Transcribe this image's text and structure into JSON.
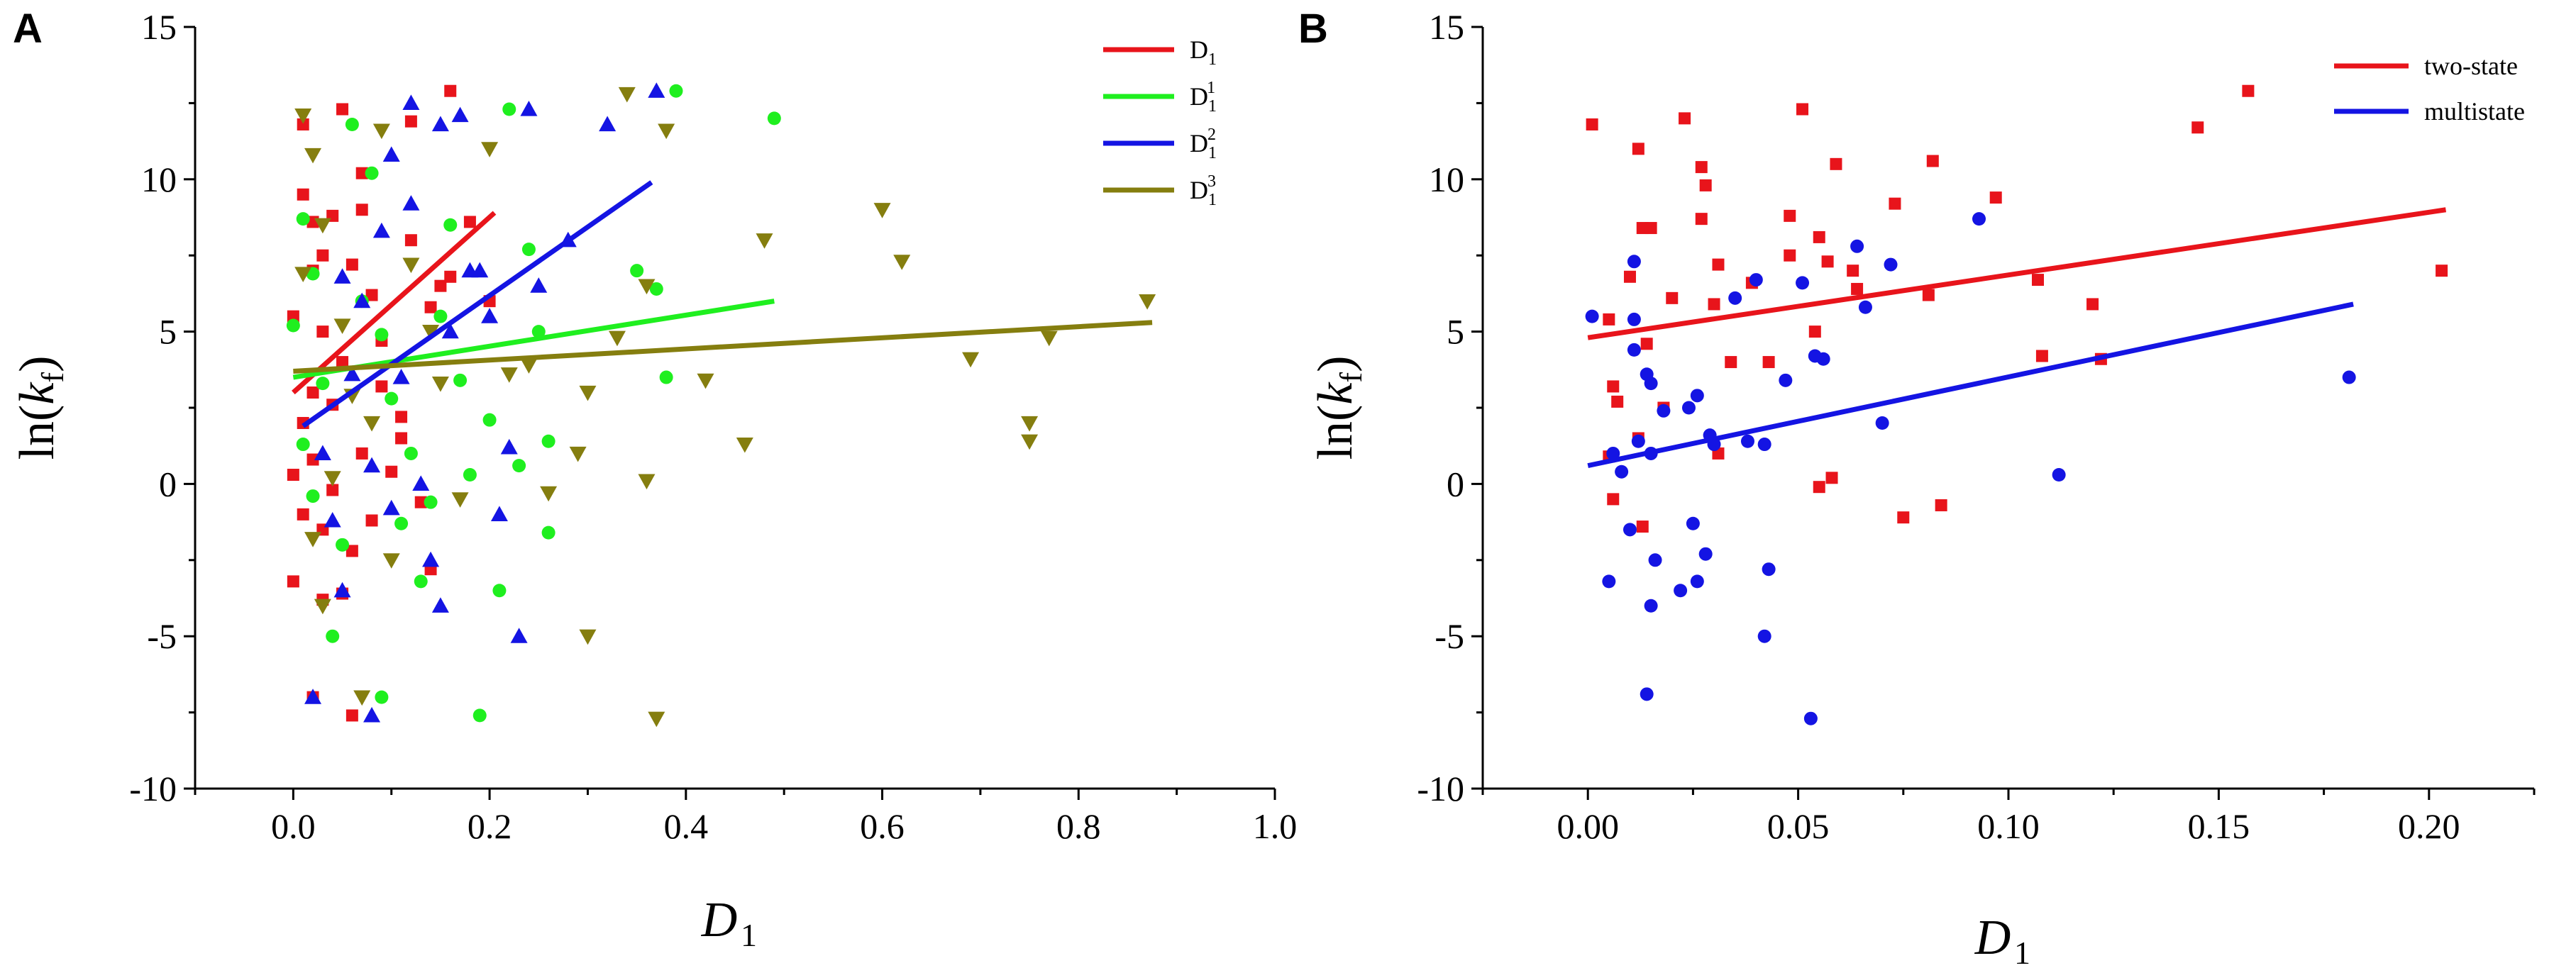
{
  "chart_data": [
    {
      "panel": "A",
      "type": "scatter",
      "xlabel": "D",
      "xlabel_sub": "1",
      "ylabel_prefix": "ln(",
      "ylabel_k": "k",
      "ylabel_sub": "f",
      "ylabel_suffix": ")",
      "xlim": [
        -0.1,
        1.0
      ],
      "ylim": [
        -10,
        15
      ],
      "xticks": [
        "0.0",
        "0.2",
        "0.4",
        "0.6",
        "0.8",
        "1.0"
      ],
      "yticks": [
        "-10",
        "-5",
        "0",
        "5",
        "10",
        "15"
      ],
      "legend_position": "top-right",
      "series": [
        {
          "name": "D",
          "sub": "1",
          "sup": "",
          "color": "#e8141b",
          "marker": "square",
          "fit": [
            [
              0.0,
              3.0
            ],
            [
              0.205,
              8.9
            ]
          ],
          "points": [
            [
              0.0,
              5.5
            ],
            [
              0.01,
              11.8
            ],
            [
              0.01,
              9.5
            ],
            [
              0.02,
              7.0
            ],
            [
              0.02,
              3.0
            ],
            [
              0.0,
              -3.2
            ],
            [
              0.03,
              -1.5
            ],
            [
              0.02,
              -7.0
            ],
            [
              0.06,
              -7.6
            ],
            [
              0.05,
              12.3
            ],
            [
              0.07,
              10.2
            ],
            [
              0.04,
              8.8
            ],
            [
              0.06,
              7.2
            ],
            [
              0.08,
              6.2
            ],
            [
              0.03,
              5.0
            ],
            [
              0.05,
              4.0
            ],
            [
              0.09,
              3.2
            ],
            [
              0.11,
              2.2
            ],
            [
              0.07,
              1.0
            ],
            [
              0.1,
              0.4
            ],
            [
              0.13,
              -0.6
            ],
            [
              0.15,
              6.5
            ],
            [
              0.16,
              12.9
            ],
            [
              0.12,
              11.9
            ],
            [
              0.18,
              8.6
            ],
            [
              0.2,
              6.0
            ],
            [
              0.02,
              0.8
            ],
            [
              0.04,
              -0.2
            ],
            [
              0.06,
              -2.2
            ],
            [
              0.03,
              -3.8
            ],
            [
              0.01,
              2.0
            ],
            [
              0.08,
              -1.2
            ],
            [
              0.05,
              -3.6
            ],
            [
              0.09,
              4.7
            ],
            [
              0.14,
              5.8
            ],
            [
              0.12,
              8.0
            ],
            [
              0.02,
              8.6
            ],
            [
              0.07,
              9.0
            ],
            [
              0.0,
              0.3
            ],
            [
              0.04,
              2.6
            ],
            [
              0.11,
              1.5
            ],
            [
              0.14,
              -2.8
            ],
            [
              0.01,
              -1.0
            ],
            [
              0.03,
              7.5
            ],
            [
              0.16,
              6.8
            ]
          ]
        },
        {
          "name": "D",
          "sub": "1",
          "sup": "1",
          "color": "#1fef1f",
          "marker": "circle",
          "fit": [
            [
              0.0,
              3.5
            ],
            [
              0.49,
              6.0
            ]
          ],
          "points": [
            [
              0.01,
              8.7
            ],
            [
              0.02,
              6.9
            ],
            [
              0.0,
              5.2
            ],
            [
              0.03,
              3.3
            ],
            [
              0.01,
              1.3
            ],
            [
              0.02,
              -0.4
            ],
            [
              0.04,
              -5.0
            ],
            [
              0.06,
              11.8
            ],
            [
              0.08,
              10.2
            ],
            [
              0.09,
              4.9
            ],
            [
              0.1,
              2.8
            ],
            [
              0.12,
              1.0
            ],
            [
              0.11,
              -1.3
            ],
            [
              0.13,
              -3.2
            ],
            [
              0.09,
              -7.0
            ],
            [
              0.19,
              -7.6
            ],
            [
              0.22,
              12.3
            ],
            [
              0.24,
              7.7
            ],
            [
              0.26,
              1.4
            ],
            [
              0.26,
              -1.6
            ],
            [
              0.21,
              -3.5
            ],
            [
              0.35,
              7.0
            ],
            [
              0.37,
              6.4
            ],
            [
              0.38,
              3.5
            ],
            [
              0.39,
              12.9
            ],
            [
              0.49,
              12.0
            ],
            [
              0.15,
              5.5
            ],
            [
              0.17,
              3.4
            ],
            [
              0.2,
              2.1
            ],
            [
              0.23,
              0.6
            ],
            [
              0.07,
              6.0
            ],
            [
              0.14,
              -0.6
            ],
            [
              0.16,
              8.5
            ],
            [
              0.25,
              5.0
            ],
            [
              0.05,
              -2.0
            ],
            [
              0.18,
              0.3
            ]
          ]
        },
        {
          "name": "D",
          "sub": "1",
          "sup": "2",
          "color": "#1414e3",
          "marker": "triangle-up",
          "fit": [
            [
              0.01,
              1.9
            ],
            [
              0.365,
              9.9
            ]
          ],
          "points": [
            [
              0.02,
              -7.0
            ],
            [
              0.08,
              -7.6
            ],
            [
              0.05,
              -3.5
            ],
            [
              0.04,
              -1.2
            ],
            [
              0.03,
              1.0
            ],
            [
              0.06,
              3.6
            ],
            [
              0.07,
              6.0
            ],
            [
              0.09,
              8.3
            ],
            [
              0.1,
              10.8
            ],
            [
              0.12,
              12.5
            ],
            [
              0.15,
              11.8
            ],
            [
              0.17,
              12.1
            ],
            [
              0.18,
              7.0
            ],
            [
              0.2,
              5.5
            ],
            [
              0.22,
              1.2
            ],
            [
              0.23,
              -5.0
            ],
            [
              0.15,
              -4.0
            ],
            [
              0.28,
              8.0
            ],
            [
              0.32,
              11.8
            ],
            [
              0.37,
              12.9
            ],
            [
              0.11,
              3.5
            ],
            [
              0.13,
              0.0
            ],
            [
              0.14,
              -2.5
            ],
            [
              0.16,
              5.0
            ],
            [
              0.19,
              7.0
            ],
            [
              0.08,
              0.6
            ],
            [
              0.12,
              9.2
            ],
            [
              0.25,
              6.5
            ],
            [
              0.05,
              6.8
            ],
            [
              0.1,
              -0.8
            ],
            [
              0.24,
              12.3
            ],
            [
              0.21,
              -1.0
            ]
          ]
        },
        {
          "name": "D",
          "sub": "1",
          "sup": "3",
          "color": "#857e0f",
          "marker": "triangle-down",
          "fit": [
            [
              0.0,
              3.7
            ],
            [
              0.875,
              5.3
            ]
          ],
          "points": [
            [
              0.01,
              12.1
            ],
            [
              0.02,
              10.8
            ],
            [
              0.03,
              8.5
            ],
            [
              0.01,
              6.9
            ],
            [
              0.05,
              5.2
            ],
            [
              0.06,
              2.9
            ],
            [
              0.04,
              0.2
            ],
            [
              0.02,
              -1.8
            ],
            [
              0.03,
              -4.0
            ],
            [
              0.07,
              -7.0
            ],
            [
              0.12,
              7.2
            ],
            [
              0.14,
              5.0
            ],
            [
              0.15,
              3.3
            ],
            [
              0.17,
              -0.5
            ],
            [
              0.22,
              3.6
            ],
            [
              0.26,
              -0.3
            ],
            [
              0.29,
              1.0
            ],
            [
              0.3,
              -5.0
            ],
            [
              0.3,
              3.0
            ],
            [
              0.34,
              12.8
            ],
            [
              0.36,
              6.5
            ],
            [
              0.36,
              0.1
            ],
            [
              0.37,
              -7.7
            ],
            [
              0.38,
              11.6
            ],
            [
              0.42,
              3.4
            ],
            [
              0.46,
              1.3
            ],
            [
              0.48,
              8.0
            ],
            [
              0.6,
              9.0
            ],
            [
              0.62,
              7.3
            ],
            [
              0.69,
              4.1
            ],
            [
              0.75,
              2.0
            ],
            [
              0.75,
              1.4
            ],
            [
              0.77,
              4.8
            ],
            [
              0.87,
              6.0
            ],
            [
              0.09,
              11.6
            ],
            [
              0.1,
              -2.5
            ],
            [
              0.24,
              3.9
            ],
            [
              0.2,
              11.0
            ],
            [
              0.33,
              4.8
            ],
            [
              0.08,
              2.0
            ]
          ]
        }
      ]
    },
    {
      "panel": "B",
      "type": "scatter",
      "xlabel": "D",
      "xlabel_sub": "1",
      "ylabel_prefix": "ln(",
      "ylabel_k": "k",
      "ylabel_sub": "f",
      "ylabel_suffix": ")",
      "xlim": [
        -0.025,
        0.225
      ],
      "ylim": [
        -10,
        15
      ],
      "xticks": [
        "0.00",
        "0.05",
        "0.10",
        "0.15",
        "0.20"
      ],
      "yticks": [
        "-10",
        "-5",
        "0",
        "5",
        "10",
        "15"
      ],
      "legend_position": "top-right",
      "series": [
        {
          "name": "two-state",
          "color": "#e8141b",
          "marker": "square",
          "fit": [
            [
              0.0,
              4.8
            ],
            [
              0.204,
              9.0
            ]
          ],
          "points": [
            [
              0.001,
              11.8
            ],
            [
              0.012,
              11.0
            ],
            [
              0.023,
              12.0
            ],
            [
              0.051,
              12.3
            ],
            [
              0.157,
              12.9
            ],
            [
              0.145,
              11.7
            ],
            [
              0.027,
              10.4
            ],
            [
              0.028,
              9.8
            ],
            [
              0.059,
              10.5
            ],
            [
              0.082,
              10.6
            ],
            [
              0.097,
              9.4
            ],
            [
              0.013,
              8.4
            ],
            [
              0.015,
              8.4
            ],
            [
              0.027,
              8.7
            ],
            [
              0.048,
              8.8
            ],
            [
              0.073,
              9.2
            ],
            [
              0.203,
              7.0
            ],
            [
              0.01,
              6.8
            ],
            [
              0.031,
              7.2
            ],
            [
              0.048,
              7.5
            ],
            [
              0.055,
              8.1
            ],
            [
              0.057,
              7.3
            ],
            [
              0.063,
              7.0
            ],
            [
              0.064,
              6.4
            ],
            [
              0.081,
              6.2
            ],
            [
              0.107,
              6.7
            ],
            [
              0.12,
              5.9
            ],
            [
              0.005,
              5.4
            ],
            [
              0.014,
              4.6
            ],
            [
              0.03,
              5.9
            ],
            [
              0.054,
              5.0
            ],
            [
              0.043,
              4.0
            ],
            [
              0.034,
              4.0
            ],
            [
              0.108,
              4.2
            ],
            [
              0.122,
              4.1
            ],
            [
              0.006,
              3.2
            ],
            [
              0.007,
              2.7
            ],
            [
              0.018,
              2.5
            ],
            [
              0.012,
              1.5
            ],
            [
              0.031,
              1.0
            ],
            [
              0.005,
              0.9
            ],
            [
              0.055,
              -0.1
            ],
            [
              0.058,
              0.2
            ],
            [
              0.075,
              -1.1
            ],
            [
              0.084,
              -0.7
            ],
            [
              0.006,
              -0.5
            ],
            [
              0.013,
              -1.4
            ],
            [
              0.039,
              6.6
            ],
            [
              0.02,
              6.1
            ]
          ]
        },
        {
          "name": "multistate",
          "color": "#1414e3",
          "marker": "circle",
          "fit": [
            [
              0.0,
              0.6
            ],
            [
              0.182,
              5.9
            ]
          ],
          "points": [
            [
              0.001,
              5.5
            ],
            [
              0.011,
              7.3
            ],
            [
              0.011,
              5.4
            ],
            [
              0.011,
              4.4
            ],
            [
              0.014,
              3.6
            ],
            [
              0.015,
              3.3
            ],
            [
              0.018,
              2.4
            ],
            [
              0.024,
              2.5
            ],
            [
              0.026,
              2.9
            ],
            [
              0.035,
              6.1
            ],
            [
              0.04,
              6.7
            ],
            [
              0.051,
              6.6
            ],
            [
              0.064,
              7.8
            ],
            [
              0.072,
              7.2
            ],
            [
              0.093,
              8.7
            ],
            [
              0.047,
              3.4
            ],
            [
              0.056,
              4.1
            ],
            [
              0.054,
              4.2
            ],
            [
              0.066,
              5.8
            ],
            [
              0.07,
              2.0
            ],
            [
              0.029,
              1.6
            ],
            [
              0.03,
              1.3
            ],
            [
              0.038,
              1.4
            ],
            [
              0.042,
              1.3
            ],
            [
              0.006,
              1.0
            ],
            [
              0.012,
              1.4
            ],
            [
              0.015,
              1.0
            ],
            [
              0.01,
              -1.5
            ],
            [
              0.005,
              -3.2
            ],
            [
              0.016,
              -2.5
            ],
            [
              0.022,
              -3.5
            ],
            [
              0.026,
              -3.2
            ],
            [
              0.025,
              -1.3
            ],
            [
              0.028,
              -2.3
            ],
            [
              0.015,
              -4.0
            ],
            [
              0.043,
              -2.8
            ],
            [
              0.042,
              -5.0
            ],
            [
              0.014,
              -6.9
            ],
            [
              0.053,
              -7.7
            ],
            [
              0.112,
              0.3
            ],
            [
              0.181,
              3.5
            ],
            [
              0.008,
              0.4
            ]
          ]
        }
      ]
    }
  ]
}
